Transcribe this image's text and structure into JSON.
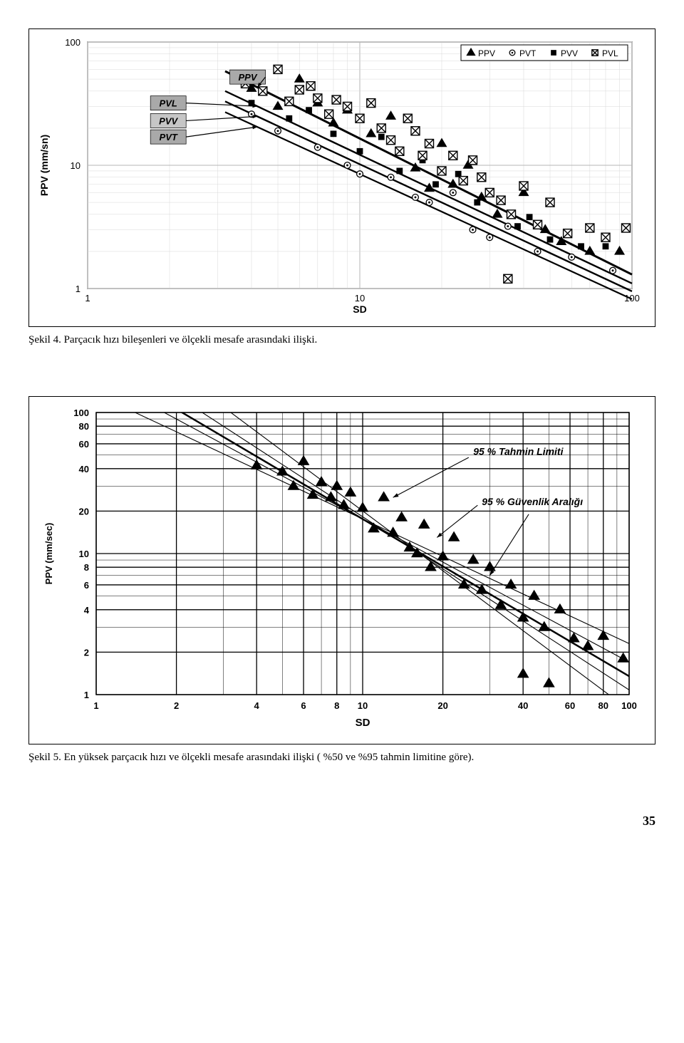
{
  "page_number": "35",
  "figure4": {
    "caption": "Şekil 4. Parçacık hızı bileşenleri ve ölçekli mesafe arasındaki ilişki.",
    "ylabel": "PPV (mm/sn)",
    "xlabel": "SD",
    "xlim": [
      1,
      100
    ],
    "ylim": [
      1,
      100
    ],
    "xticks": [
      1,
      10,
      100
    ],
    "yticks": [
      1,
      10,
      100
    ],
    "scale": "log-log",
    "background_color": "#ffffff",
    "grid_color": "#b5b5b5",
    "grid_minor_color": "#d8d8d8",
    "box_labels": [
      {
        "text": "PPV",
        "fill": "#a9a9a9",
        "x_sd": 4.5,
        "y_ppv": 52
      },
      {
        "text": "PVL",
        "fill": "#a9a9a9",
        "x_sd": 2.3,
        "y_ppv": 32
      },
      {
        "text": "PVV",
        "fill": "#c6c6c6",
        "x_sd": 2.3,
        "y_ppv": 23
      },
      {
        "text": "PVT",
        "fill": "#a9a9a9",
        "x_sd": 2.3,
        "y_ppv": 17
      }
    ],
    "legend": {
      "items": [
        {
          "marker": "triangle",
          "label": "PPV",
          "color": "#000000"
        },
        {
          "marker": "circle-dot",
          "label": "PVT",
          "color": "#000000"
        },
        {
          "marker": "square-filled",
          "label": "PVV",
          "color": "#000000"
        },
        {
          "marker": "square-x",
          "label": "PVL",
          "color": "#000000"
        }
      ],
      "position": "top-right"
    },
    "regressions": [
      {
        "name": "PPV",
        "p1_sd": 3.2,
        "p1_y": 58,
        "p2_sd": 100,
        "p2_y": 1.3,
        "width": 3,
        "color": "#000000"
      },
      {
        "name": "PVL",
        "p1_sd": 3.2,
        "p1_y": 40,
        "p2_sd": 100,
        "p2_y": 1.1,
        "width": 2.4,
        "color": "#000000"
      },
      {
        "name": "PVV",
        "p1_sd": 3.2,
        "p1_y": 33,
        "p2_sd": 100,
        "p2_y": 0.95,
        "width": 2.4,
        "color": "#000000"
      },
      {
        "name": "PVT",
        "p1_sd": 3.2,
        "p1_y": 27,
        "p2_sd": 100,
        "p2_y": 0.82,
        "width": 2.2,
        "color": "#000000"
      }
    ],
    "scatter": {
      "ppv_triangle": {
        "marker": "triangle",
        "size": 8,
        "color": "#000000",
        "points": [
          [
            4,
            42
          ],
          [
            5,
            30
          ],
          [
            6,
            50
          ],
          [
            7,
            32
          ],
          [
            8,
            22
          ],
          [
            9,
            28
          ],
          [
            11,
            18
          ],
          [
            13,
            25
          ],
          [
            16,
            9.5
          ],
          [
            18,
            6.5
          ],
          [
            20,
            15
          ],
          [
            22,
            7
          ],
          [
            25,
            10
          ],
          [
            28,
            5.5
          ],
          [
            32,
            4
          ],
          [
            40,
            6
          ],
          [
            48,
            3
          ],
          [
            55,
            2.4
          ],
          [
            70,
            2
          ],
          [
            90,
            2
          ]
        ]
      },
      "pvt_circle": {
        "marker": "circle-dot",
        "size": 8,
        "color": "#000000",
        "points": [
          [
            4,
            26
          ],
          [
            5,
            19
          ],
          [
            7,
            14
          ],
          [
            9,
            10
          ],
          [
            10,
            8.5
          ],
          [
            13,
            8
          ],
          [
            16,
            5.5
          ],
          [
            18,
            5
          ],
          [
            22,
            6
          ],
          [
            26,
            3
          ],
          [
            30,
            2.6
          ],
          [
            35,
            3.2
          ],
          [
            45,
            2
          ],
          [
            60,
            1.8
          ],
          [
            85,
            1.4
          ]
        ]
      },
      "pvv_square": {
        "marker": "square-filled",
        "size": 8,
        "color": "#000000",
        "points": [
          [
            4,
            32
          ],
          [
            5.5,
            24
          ],
          [
            6.5,
            28
          ],
          [
            8,
            18
          ],
          [
            10,
            13
          ],
          [
            12,
            17
          ],
          [
            14,
            9
          ],
          [
            17,
            11
          ],
          [
            19,
            7
          ],
          [
            23,
            8.5
          ],
          [
            27,
            5
          ],
          [
            30,
            6
          ],
          [
            38,
            3.2
          ],
          [
            42,
            3.8
          ],
          [
            50,
            2.5
          ],
          [
            65,
            2.2
          ],
          [
            80,
            2.2
          ]
        ]
      },
      "pvl_squarex": {
        "marker": "square-x",
        "size": 10,
        "color": "#000000",
        "points": [
          [
            3.8,
            46
          ],
          [
            4.4,
            40
          ],
          [
            5,
            60
          ],
          [
            5.5,
            33
          ],
          [
            6,
            41
          ],
          [
            6.6,
            44
          ],
          [
            7,
            35
          ],
          [
            7.7,
            26
          ],
          [
            8.2,
            34
          ],
          [
            9,
            30
          ],
          [
            10,
            24
          ],
          [
            11,
            32
          ],
          [
            12,
            20
          ],
          [
            13,
            16
          ],
          [
            14,
            13
          ],
          [
            15,
            24
          ],
          [
            16,
            19
          ],
          [
            17,
            12
          ],
          [
            18,
            15
          ],
          [
            20,
            9
          ],
          [
            22,
            12
          ],
          [
            24,
            7.5
          ],
          [
            26,
            11
          ],
          [
            28,
            8
          ],
          [
            30,
            6
          ],
          [
            33,
            5.2
          ],
          [
            36,
            4
          ],
          [
            40,
            6.8
          ],
          [
            45,
            3.3
          ],
          [
            50,
            5
          ],
          [
            58,
            2.8
          ],
          [
            70,
            3.1
          ],
          [
            80,
            2.6
          ],
          [
            95,
            3.1
          ],
          [
            35,
            1.2
          ]
        ]
      }
    }
  },
  "figure5": {
    "caption": "Şekil 5. En yüksek parçacık hızı ve ölçekli mesafe arasındaki ilişki ( %50 ve %95 tahmin limitine göre).",
    "ylabel": "PPV (mm/sec)",
    "xlabel": "SD",
    "xlim": [
      1,
      100
    ],
    "ylim": [
      1,
      100
    ],
    "xticks": [
      1,
      2,
      4,
      6,
      8,
      10,
      20,
      40,
      60,
      80,
      100
    ],
    "yticks": [
      1,
      2,
      4,
      6,
      8,
      10,
      20,
      40,
      60,
      80,
      100
    ],
    "scale": "log-log",
    "background_color": "#ffffff",
    "grid_color": "#000000",
    "annotations": [
      {
        "text": "95 % Tahmin Limiti",
        "x_sd": 26,
        "y_ppv": 50,
        "italic": true,
        "fontsize": 14
      },
      {
        "text": "95 % Güvenlik Aralığı",
        "x_sd": 28,
        "y_ppv": 22,
        "italic": true,
        "fontsize": 14
      }
    ],
    "regressions": [
      {
        "name": "upper95pred",
        "p1_sd": 1.4,
        "p1_y": 100,
        "p2_sd": 100,
        "p2_y": 2.3,
        "width": 1.1,
        "color": "#000000"
      },
      {
        "name": "upper95conf",
        "p1_sd": 1.8,
        "p1_y": 100,
        "p2_sd": 100,
        "p2_y": 1.7,
        "width": 1.1,
        "color": "#000000"
      },
      {
        "name": "mean",
        "p1_sd": 2.1,
        "p1_y": 100,
        "p2_sd": 100,
        "p2_y": 1.35,
        "width": 2.5,
        "color": "#000000"
      },
      {
        "name": "lower95conf",
        "p1_sd": 2.5,
        "p1_y": 100,
        "p2_sd": 100,
        "p2_y": 1.08,
        "width": 1.1,
        "color": "#000000"
      },
      {
        "name": "lower95pred",
        "p1_sd": 3.2,
        "p1_y": 100,
        "p2_sd": 100,
        "p2_y": 0.78,
        "width": 1.1,
        "color": "#000000"
      }
    ],
    "arrows": [
      {
        "from_sd": 25,
        "from_y": 48,
        "to_sd": 13,
        "to_y": 25
      },
      {
        "from_sd": 27,
        "from_y": 22,
        "to_sd": 19,
        "to_y": 13
      },
      {
        "from_sd": 42,
        "from_y": 19,
        "to_sd": 30,
        "to_y": 7
      }
    ],
    "scatter": {
      "marker": "triangle",
      "size": 9,
      "color": "#000000",
      "points": [
        [
          4,
          42
        ],
        [
          5,
          38
        ],
        [
          5.5,
          30
        ],
        [
          6,
          45
        ],
        [
          6.5,
          26
        ],
        [
          7,
          32
        ],
        [
          7.6,
          25
        ],
        [
          8,
          30
        ],
        [
          8.5,
          22
        ],
        [
          9,
          27
        ],
        [
          10,
          21
        ],
        [
          11,
          15
        ],
        [
          12,
          25
        ],
        [
          13,
          14
        ],
        [
          14,
          18
        ],
        [
          15,
          11
        ],
        [
          16,
          10
        ],
        [
          17,
          16
        ],
        [
          18,
          8
        ],
        [
          20,
          9.5
        ],
        [
          22,
          13
        ],
        [
          24,
          6
        ],
        [
          26,
          9
        ],
        [
          28,
          5.5
        ],
        [
          30,
          8
        ],
        [
          33,
          4.3
        ],
        [
          36,
          6
        ],
        [
          40,
          3.5
        ],
        [
          44,
          5
        ],
        [
          48,
          3.0
        ],
        [
          55,
          4
        ],
        [
          62,
          2.5
        ],
        [
          70,
          2.2
        ],
        [
          80,
          2.6
        ],
        [
          95,
          1.8
        ],
        [
          40,
          1.4
        ],
        [
          50,
          1.2
        ]
      ]
    }
  }
}
